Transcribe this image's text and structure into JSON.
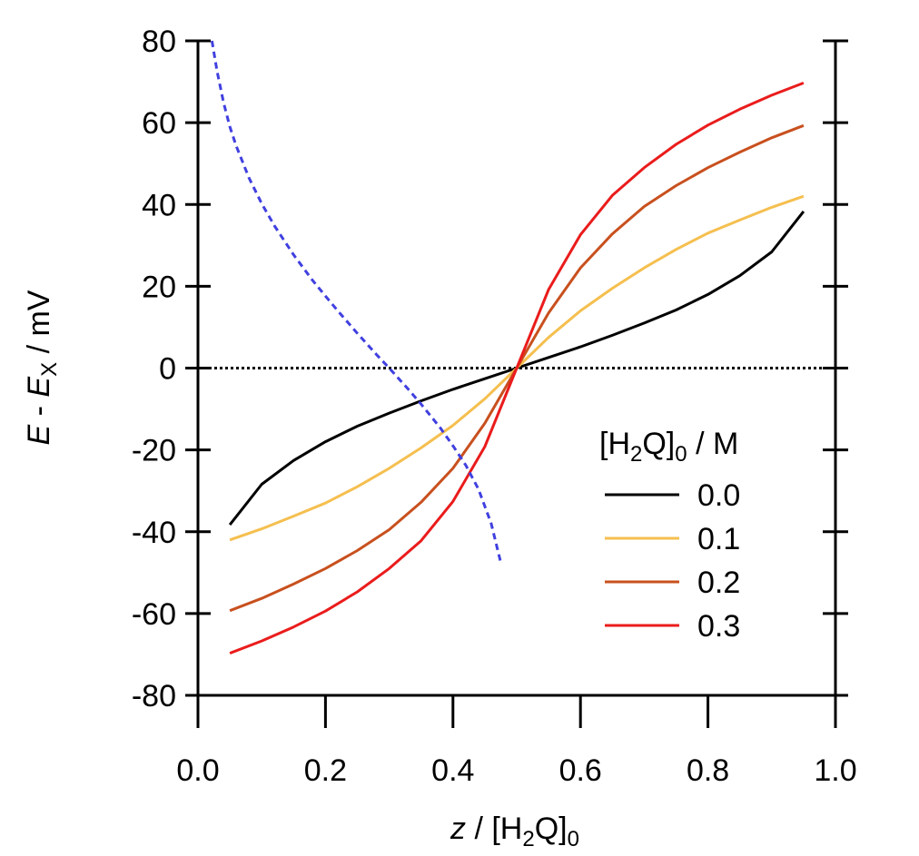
{
  "chart_data": {
    "type": "line",
    "xlabel": {
      "italic": "z",
      "slash": " / [H",
      "sub1": "2",
      "mid": "Q]",
      "sub2": "0"
    },
    "ylabel": {
      "e1": "E",
      "dash": " - ",
      "e2": "E",
      "sub": "X",
      "unit": " / mV"
    },
    "xlim": [
      0.0,
      1.0
    ],
    "ylim": [
      -80,
      80
    ],
    "xticks": [
      0.0,
      0.2,
      0.4,
      0.6,
      0.8,
      1.0
    ],
    "xtick_labels": [
      "0.0",
      "0.2",
      "0.4",
      "0.6",
      "0.8",
      "1.0"
    ],
    "yticks": [
      -80,
      -60,
      -40,
      -20,
      0,
      20,
      40,
      60,
      80
    ],
    "ytick_labels": [
      "-80",
      "-60",
      "-40",
      "-20",
      "0",
      "20",
      "40",
      "60",
      "80"
    ],
    "grid": false,
    "legend": {
      "placement": "bottom-right",
      "title": {
        "pre": "[H",
        "sub1": "2",
        "mid": "Q]",
        "sub2": "0",
        "post": " / M"
      }
    },
    "x": [
      0.05,
      0.1,
      0.15,
      0.2,
      0.25,
      0.3,
      0.35,
      0.4,
      0.45,
      0.5,
      0.55,
      0.6,
      0.65,
      0.7,
      0.75,
      0.8,
      0.85,
      0.9,
      0.95
    ],
    "series": [
      {
        "name": "0.0",
        "color": "#000000",
        "values": [
          -38.3,
          -28.4,
          -22.6,
          -18.0,
          -14.2,
          -11.0,
          -8.0,
          -5.2,
          -2.6,
          0.0,
          2.6,
          5.2,
          8.0,
          11.0,
          14.2,
          18.0,
          22.6,
          28.4,
          38.3
        ]
      },
      {
        "name": "0.1",
        "color": "#f5bf4f",
        "values": [
          -42.0,
          -39.3,
          -36.2,
          -33.0,
          -29.0,
          -24.5,
          -19.5,
          -14.0,
          -7.5,
          0.0,
          7.5,
          14.0,
          19.5,
          24.5,
          29.0,
          33.0,
          36.2,
          39.3,
          42.0
        ]
      },
      {
        "name": "0.2",
        "color": "#c8501e",
        "values": [
          -59.3,
          -56.3,
          -52.8,
          -49.0,
          -44.6,
          -39.5,
          -32.8,
          -24.5,
          -13.5,
          0.0,
          13.5,
          24.5,
          32.8,
          39.5,
          44.6,
          49.0,
          52.8,
          56.3,
          59.3
        ]
      },
      {
        "name": "0.3",
        "color": "#ea1c1c",
        "values": [
          -69.7,
          -66.7,
          -63.3,
          -59.4,
          -54.7,
          -49.0,
          -42.2,
          -32.6,
          -19.2,
          0.0,
          19.2,
          32.6,
          42.2,
          49.0,
          54.7,
          59.4,
          63.3,
          66.7,
          69.7
        ]
      }
    ],
    "reference_curve": {
      "color": "#4040e0",
      "style": "dashed",
      "x": [
        0.022,
        0.03,
        0.04,
        0.05,
        0.06,
        0.08,
        0.1,
        0.12,
        0.15,
        0.18,
        0.2,
        0.22,
        0.25,
        0.28,
        0.3,
        0.33,
        0.35,
        0.38,
        0.4,
        0.42,
        0.44,
        0.46,
        0.475
      ],
      "values": [
        80,
        72.5,
        65.0,
        59.0,
        54.3,
        46.5,
        40.2,
        34.8,
        27.7,
        21.4,
        17.6,
        13.9,
        8.5,
        3.3,
        0.0,
        -5.2,
        -8.8,
        -14.6,
        -19.0,
        -23.7,
        -29.6,
        -38.0,
        -47.6
      ]
    },
    "zero_line": {
      "y": 0,
      "style": "dotted",
      "color": "#000000"
    }
  }
}
